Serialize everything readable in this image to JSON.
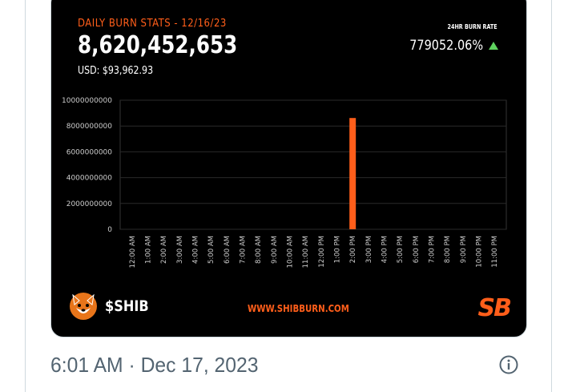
{
  "post": {
    "timestamp": "6:01 AM · Dec 17, 2023"
  },
  "image": {
    "title": "DAILY BURN STATS - 12/16/23",
    "total_burned": "8,620,452,653",
    "usd": "USD: $93,962.93",
    "rate_label": "24HR BURN RATE",
    "rate_value": "779052.06%",
    "token": "$SHIB",
    "website": "WWW.SHIBBURN.COM",
    "brand_mark": "SB"
  },
  "icons": {
    "rate_trend": "triangle-up-icon",
    "token_logo": "shiba-inu-logo-icon",
    "info": "info-circle-icon"
  },
  "colors": {
    "accent": "#ff5e1a",
    "up": "#5fd35f",
    "card_bg": "#000000",
    "muted_text": "#536471"
  },
  "chart_data": {
    "type": "bar",
    "categories": [
      "12:00 AM",
      "1:00 AM",
      "2:00 AM",
      "3:00 AM",
      "4:00 AM",
      "5:00 AM",
      "6:00 AM",
      "7:00 AM",
      "8:00 AM",
      "9:00 AM",
      "10:00 AM",
      "11:00 AM",
      "12:00 PM",
      "1:00 PM",
      "2:00 PM",
      "3:00 PM",
      "4:00 PM",
      "5:00 PM",
      "6:00 PM",
      "7:00 PM",
      "8:00 PM",
      "9:00 PM",
      "10:00 PM",
      "11:00 PM"
    ],
    "values": [
      0,
      0,
      0,
      0,
      0,
      0,
      0,
      0,
      0,
      0,
      0,
      0,
      0,
      0,
      8620452653,
      0,
      0,
      0,
      0,
      0,
      0,
      0,
      0,
      0
    ],
    "ylim": [
      0,
      10000000000
    ],
    "yticks": [
      0,
      2000000000,
      4000000000,
      6000000000,
      8000000000,
      10000000000
    ],
    "ytick_labels": [
      "0",
      "2000000000",
      "4000000000",
      "6000000000",
      "8000000000",
      "10000000000"
    ],
    "grid": true,
    "bar_color": "#ff5e1a"
  }
}
